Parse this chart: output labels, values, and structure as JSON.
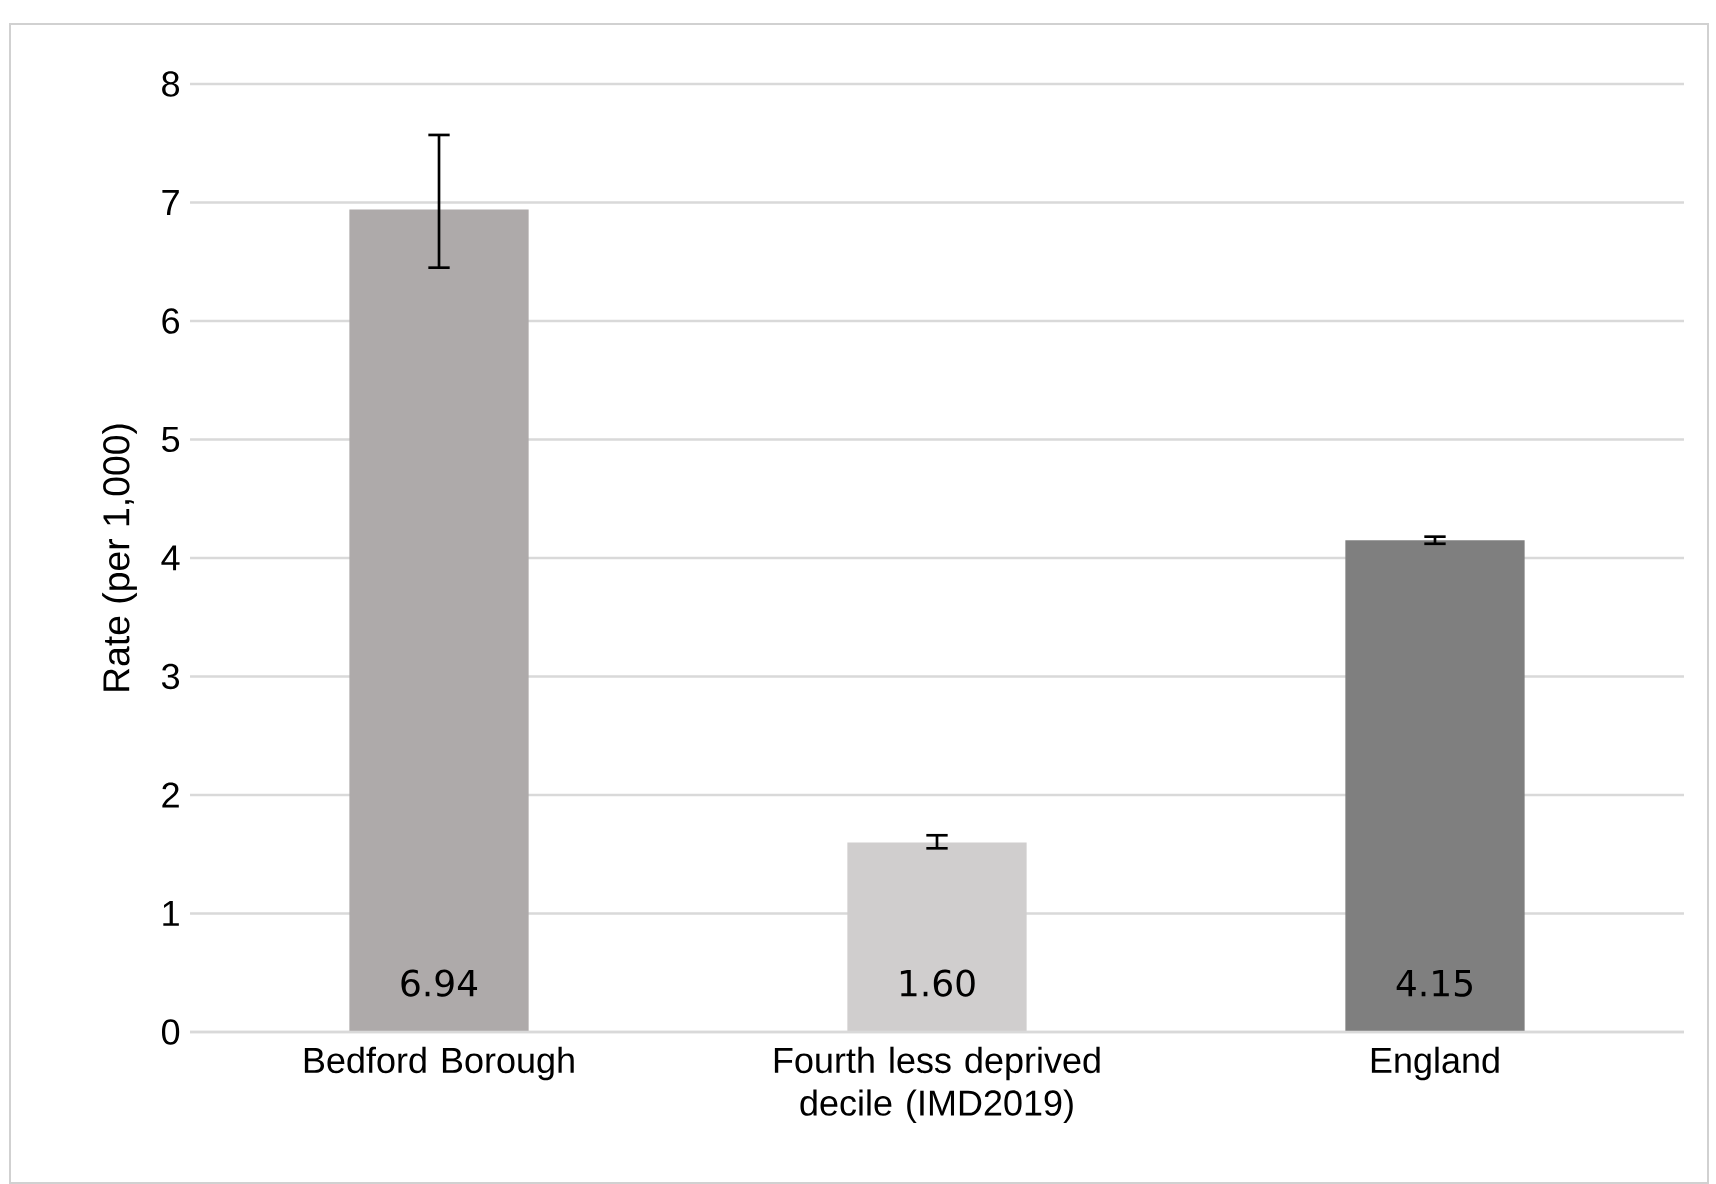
{
  "chart_data": {
    "type": "bar",
    "ylabel": "Rate (per 1,000)",
    "categories": [
      "Bedford Borough",
      "Fourth less deprived decile (IMD2019)",
      "England"
    ],
    "values": [
      6.94,
      1.6,
      4.15
    ],
    "colors": [
      "#aeaaaa",
      "#d0cece",
      "#7f7f7f"
    ],
    "errors": [
      [
        6.45,
        7.57
      ],
      [
        1.55,
        1.66
      ],
      [
        4.12,
        4.18
      ]
    ],
    "value_labels": [
      "6.94",
      "1.60",
      "4.15"
    ],
    "ylim": [
      0,
      8
    ],
    "yticks": [
      0,
      1,
      2,
      3,
      4,
      5,
      6,
      7,
      8
    ],
    "grid": "y"
  }
}
